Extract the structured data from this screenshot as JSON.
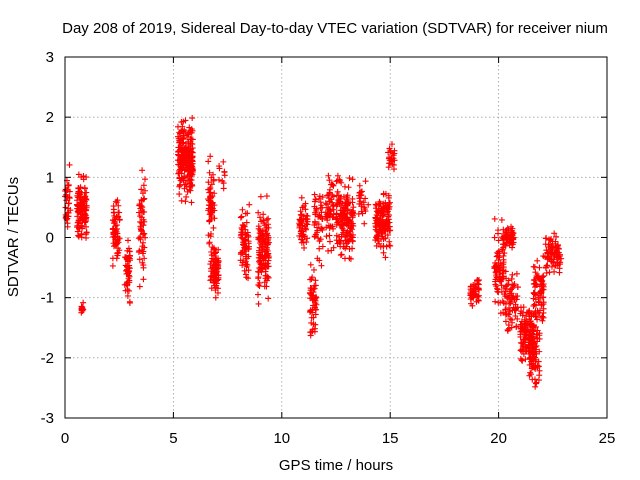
{
  "chart_data": {
    "type": "scatter",
    "title": "Day 208 of 2019, Sidereal Day-to-day VTEC variation (SDTVAR) for receiver nium",
    "xlabel": "GPS time / hours",
    "ylabel": "SDTVAR / TECUs",
    "xlim": [
      0,
      25
    ],
    "ylim": [
      -3,
      3
    ],
    "xticks": [
      0,
      5,
      10,
      15,
      20,
      25
    ],
    "xtick_labels": [
      "0",
      "5",
      "10",
      "15",
      "20",
      "25"
    ],
    "yticks": [
      -3,
      -2,
      -1,
      0,
      1,
      2,
      3
    ],
    "ytick_labels": [
      "-3",
      "-2",
      "-1",
      "0",
      "1",
      "2",
      "3"
    ],
    "grid": true,
    "marker": "+",
    "color": "#ff0000",
    "series": [
      {
        "name": "SDTVAR",
        "clusters": [
          {
            "x": [
              0.0,
              0.25
            ],
            "center": 0.5,
            "spread": 0.9,
            "n": 35
          },
          {
            "x": [
              0.55,
              1.0
            ],
            "center": 0.5,
            "spread": 0.7,
            "n": 130
          },
          {
            "x": [
              0.75,
              0.85
            ],
            "center": -1.2,
            "spread": 0.15,
            "n": 12
          },
          {
            "x": [
              2.2,
              2.55
            ],
            "center": 0.1,
            "spread": 0.7,
            "n": 70
          },
          {
            "x": [
              2.75,
              3.0
            ],
            "center": -0.5,
            "spread": 0.8,
            "n": 50
          },
          {
            "x": [
              3.4,
              3.7
            ],
            "center": 0.2,
            "spread": 1.2,
            "n": 55
          },
          {
            "x": [
              5.2,
              5.9
            ],
            "center": 1.3,
            "spread": 0.8,
            "n": 230
          },
          {
            "x": [
              6.6,
              6.9
            ],
            "center": 0.55,
            "spread": 0.95,
            "n": 60
          },
          {
            "x": [
              6.7,
              7.1
            ],
            "center": -0.55,
            "spread": 0.55,
            "n": 80
          },
          {
            "x": [
              7.1,
              7.4
            ],
            "center": 1.1,
            "spread": 0.3,
            "n": 10
          },
          {
            "x": [
              8.1,
              8.5
            ],
            "center": -0.1,
            "spread": 0.8,
            "n": 70
          },
          {
            "x": [
              8.9,
              9.4
            ],
            "center": -0.2,
            "spread": 1.1,
            "n": 130
          },
          {
            "x": [
              10.8,
              11.2
            ],
            "center": 0.2,
            "spread": 0.6,
            "n": 55
          },
          {
            "x": [
              11.3,
              11.6
            ],
            "center": -1.1,
            "spread": 0.9,
            "n": 55
          },
          {
            "x": [
              11.5,
              11.9
            ],
            "center": 0.2,
            "spread": 0.8,
            "n": 45
          },
          {
            "x": [
              12.0,
              12.4
            ],
            "center": 0.4,
            "spread": 0.9,
            "n": 60
          },
          {
            "x": [
              12.5,
              13.3
            ],
            "center": 0.3,
            "spread": 0.9,
            "n": 170
          },
          {
            "x": [
              13.5,
              14.0
            ],
            "center": 0.6,
            "spread": 0.5,
            "n": 25
          },
          {
            "x": [
              14.3,
              15.0
            ],
            "center": 0.25,
            "spread": 0.65,
            "n": 150
          },
          {
            "x": [
              14.9,
              15.2
            ],
            "center": 1.35,
            "spread": 0.25,
            "n": 25
          },
          {
            "x": [
              18.7,
              19.1
            ],
            "center": -0.9,
            "spread": 0.3,
            "n": 45
          },
          {
            "x": [
              19.8,
              20.3
            ],
            "center": -0.5,
            "spread": 0.9,
            "n": 80
          },
          {
            "x": [
              20.2,
              20.7
            ],
            "center": 0.0,
            "spread": 0.25,
            "n": 60
          },
          {
            "x": [
              20.3,
              20.9
            ],
            "center": -1.1,
            "spread": 0.75,
            "n": 70
          },
          {
            "x": [
              21.0,
              21.6
            ],
            "center": -1.6,
            "spread": 0.6,
            "n": 120
          },
          {
            "x": [
              21.4,
              21.9
            ],
            "center": -1.9,
            "spread": 0.8,
            "n": 90
          },
          {
            "x": [
              21.6,
              22.1
            ],
            "center": -0.9,
            "spread": 0.8,
            "n": 80
          },
          {
            "x": [
              22.1,
              22.9
            ],
            "center": -0.3,
            "spread": 0.45,
            "n": 80
          }
        ]
      }
    ]
  }
}
